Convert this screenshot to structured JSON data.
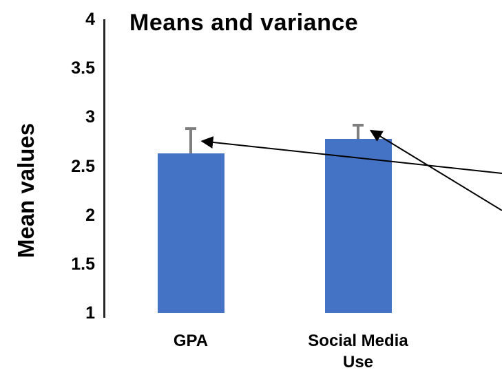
{
  "chart_data": {
    "type": "bar",
    "title": "Means and variance",
    "xlabel": "",
    "ylabel": "Mean values",
    "categories": [
      "GPA",
      "Social Media Use"
    ],
    "values": [
      2.63,
      2.78
    ],
    "error_plus": [
      0.25,
      0.14
    ],
    "ylim": [
      1,
      4
    ],
    "yticks": [
      1,
      1.5,
      2,
      2.5,
      3,
      3.5,
      4
    ],
    "grid": false,
    "legend": "none",
    "bar_color": "#4472C4",
    "error_color": "#7F7F7F",
    "axis_color": "#262626",
    "annotation_color": "#000000",
    "annotations": [
      {
        "type": "arrow",
        "points_to": "GPA error bar",
        "from": "right edge"
      },
      {
        "type": "arrow",
        "points_to": "Social Media Use error bar",
        "from": "right edge"
      }
    ]
  }
}
